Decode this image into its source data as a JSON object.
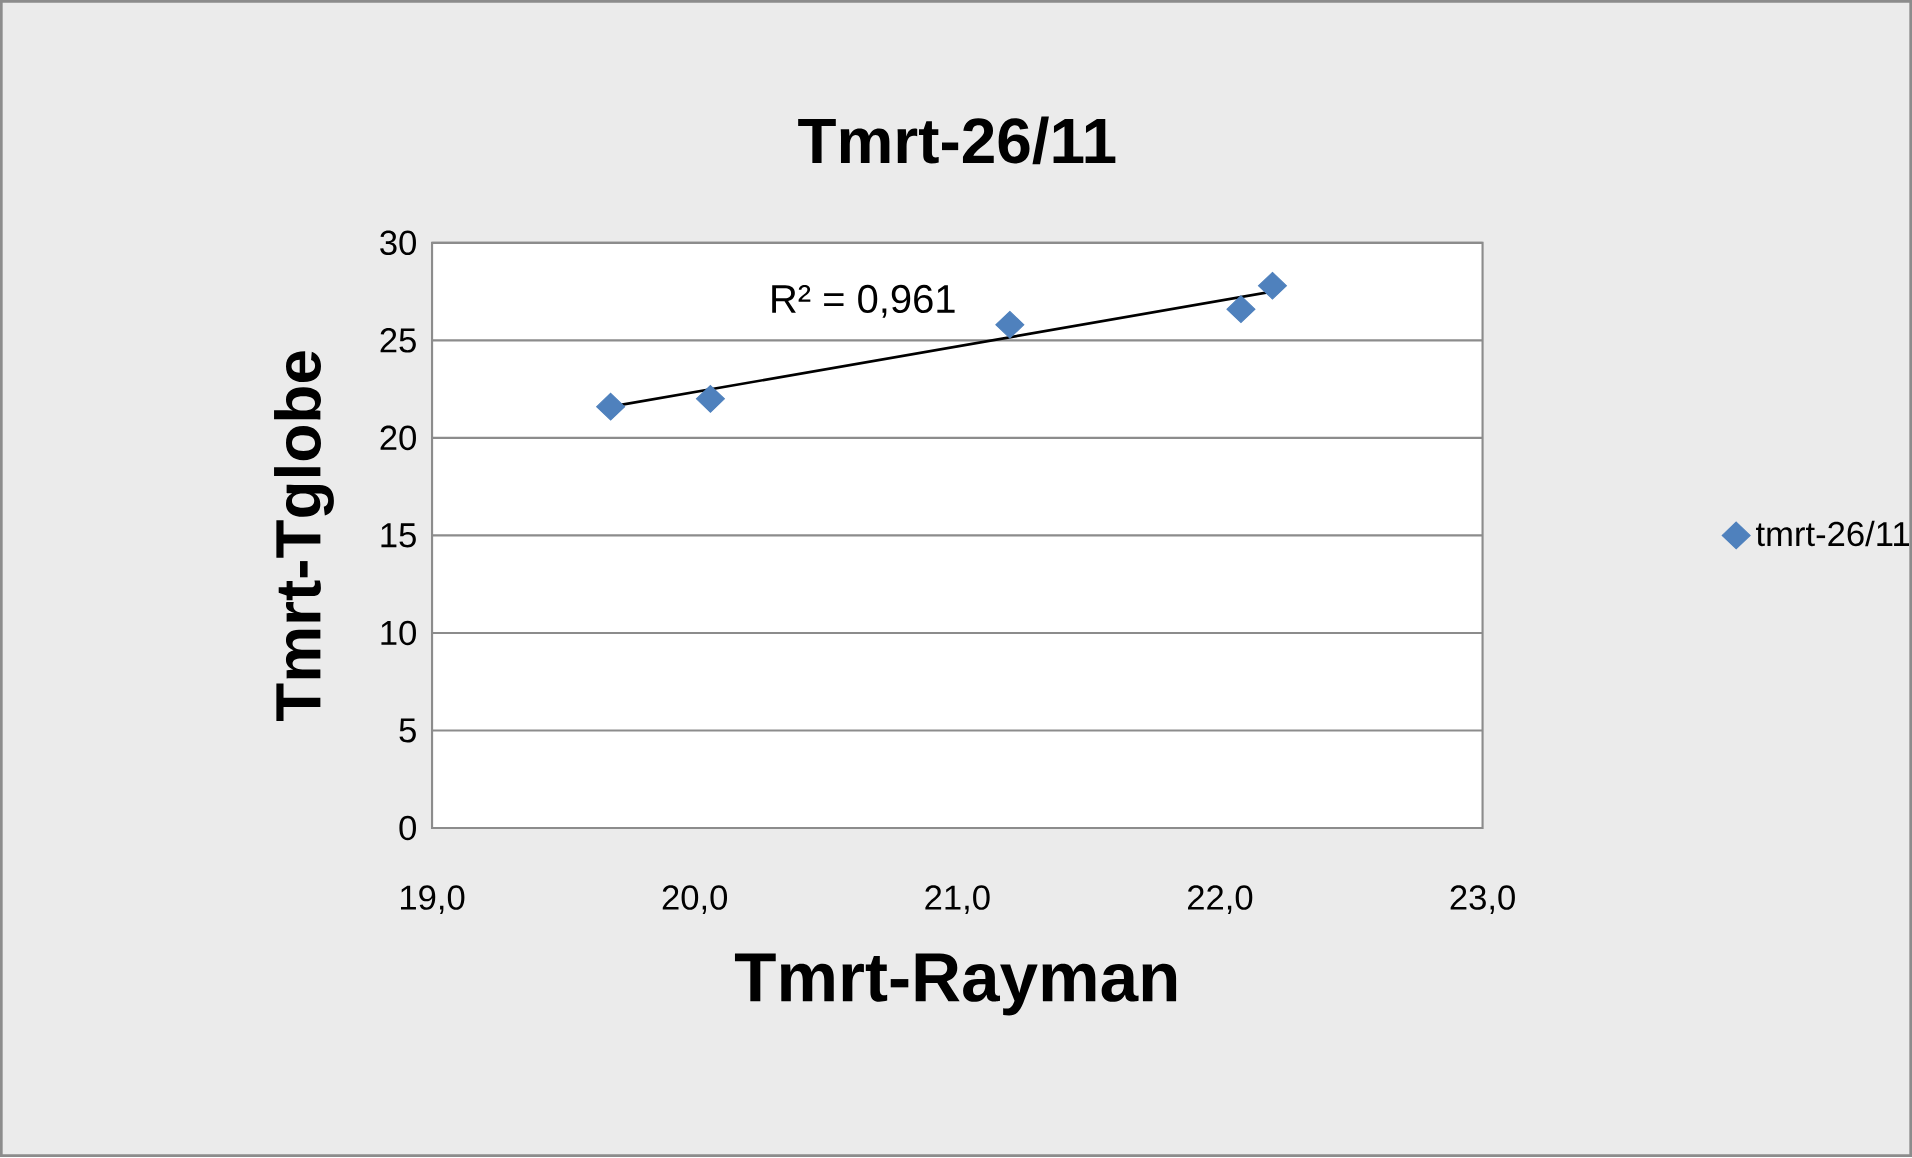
{
  "chart_data": {
    "type": "scatter",
    "title": "Tmrt-26/11",
    "xlabel": "Tmrt-Rayman",
    "ylabel": "Tmrt-Tglobe",
    "xlim": [
      19,
      23
    ],
    "ylim": [
      0,
      30
    ],
    "xticks": [
      {
        "value": 19,
        "label": "19,0"
      },
      {
        "value": 20,
        "label": "20,0"
      },
      {
        "value": 21,
        "label": "21,0"
      },
      {
        "value": 22,
        "label": "22,0"
      },
      {
        "value": 23,
        "label": "23,0"
      }
    ],
    "yticks": [
      0,
      5,
      10,
      15,
      20,
      25,
      30
    ],
    "grid": "y",
    "legend": "right",
    "series": [
      {
        "name": "tmrt-26/11",
        "marker": "diamond",
        "color": "#4f81bd",
        "x": [
          19.68,
          20.06,
          21.2,
          22.08,
          22.2
        ],
        "values": [
          21.6,
          22.0,
          25.8,
          26.6,
          27.8
        ]
      },
      {
        "type": "line",
        "color": "#000000",
        "x": [
          19.68,
          22.2
        ],
        "values": [
          21.6,
          27.5
        ]
      }
    ],
    "annotations": [
      "R² = 0,961"
    ]
  }
}
